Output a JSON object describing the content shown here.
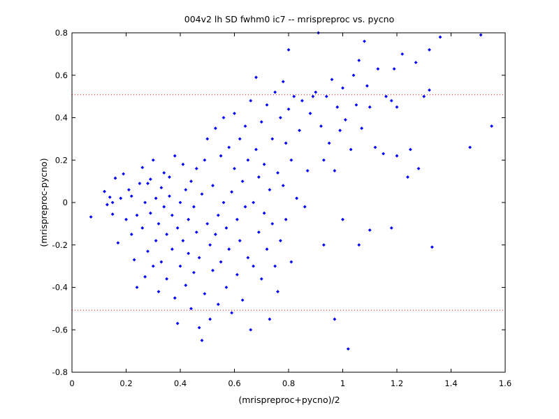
{
  "chart_data": {
    "type": "scatter",
    "title": "004v2 lh SD fwhm0 ic7 -- mrispreproc vs. pycno",
    "xlabel": "(mrispreproc+pycno)/2",
    "ylabel": "(mrispreproc-pycno)",
    "xlim": [
      0,
      1.6
    ],
    "ylim": [
      -0.8,
      0.8
    ],
    "xticks": [
      "0",
      "0.2",
      "0.4",
      "0.6",
      "0.8",
      "1",
      "1.2",
      "1.4",
      "1.6"
    ],
    "yticks": [
      "-0.8",
      "-0.6",
      "-0.4",
      "-0.2",
      "0",
      "0.2",
      "0.4",
      "0.6",
      "0.8"
    ],
    "grid": false,
    "marker_color": "#0000ff",
    "reference_color": "#ff0000",
    "reference_lines": [
      0.508,
      -0.508
    ],
    "series": [
      {
        "points": [
          [
            0.07,
            -0.068
          ],
          [
            0.12,
            0.052
          ],
          [
            0.13,
            -0.01
          ],
          [
            0.14,
            0.025
          ],
          [
            0.15,
            -0.055
          ],
          [
            0.15,
            0.0
          ],
          [
            0.16,
            0.115
          ],
          [
            0.17,
            -0.19
          ],
          [
            0.18,
            0.02
          ],
          [
            0.19,
            0.135
          ],
          [
            0.2,
            -0.08
          ],
          [
            0.21,
            0.06
          ],
          [
            0.22,
            -0.15
          ],
          [
            0.22,
            0.03
          ],
          [
            0.23,
            -0.27
          ],
          [
            0.24,
            -0.4
          ],
          [
            0.24,
            -0.06
          ],
          [
            0.25,
            0.09
          ],
          [
            0.26,
            0.165
          ],
          [
            0.26,
            -0.12
          ],
          [
            0.27,
            -0.35
          ],
          [
            0.27,
            0.0
          ],
          [
            0.28,
            -0.23
          ],
          [
            0.28,
            0.09
          ],
          [
            0.29,
            -0.05
          ],
          [
            0.29,
            0.11
          ],
          [
            0.3,
            -0.3
          ],
          [
            0.3,
            0.2
          ],
          [
            0.31,
            -0.18
          ],
          [
            0.31,
            0.02
          ],
          [
            0.32,
            -0.42
          ],
          [
            0.32,
            -0.1
          ],
          [
            0.33,
            0.07
          ],
          [
            0.33,
            -0.28
          ],
          [
            0.34,
            -0.02
          ],
          [
            0.34,
            0.14
          ],
          [
            0.35,
            -0.15
          ],
          [
            0.35,
            -0.36
          ],
          [
            0.36,
            0.03
          ],
          [
            0.36,
            0.12
          ],
          [
            0.37,
            -0.22
          ],
          [
            0.37,
            -0.06
          ],
          [
            0.38,
            -0.45
          ],
          [
            0.38,
            0.22
          ],
          [
            0.39,
            -0.57
          ],
          [
            0.39,
            -0.12
          ],
          [
            0.4,
            0.0
          ],
          [
            0.4,
            -0.3
          ],
          [
            0.41,
            0.18
          ],
          [
            0.41,
            -0.18
          ],
          [
            0.42,
            -0.39
          ],
          [
            0.42,
            0.06
          ],
          [
            0.43,
            -0.08
          ],
          [
            0.43,
            -0.24
          ],
          [
            0.44,
            0.1
          ],
          [
            0.44,
            -0.5
          ],
          [
            0.45,
            -0.02
          ],
          [
            0.45,
            -0.33
          ],
          [
            0.46,
            0.16
          ],
          [
            0.46,
            -0.14
          ],
          [
            0.47,
            -0.59
          ],
          [
            0.47,
            -0.26
          ],
          [
            0.48,
            0.04
          ],
          [
            0.48,
            -0.65
          ],
          [
            0.49,
            -0.43
          ],
          [
            0.49,
            0.2
          ],
          [
            0.5,
            -0.1
          ],
          [
            0.5,
            0.3
          ],
          [
            0.51,
            -0.2
          ],
          [
            0.51,
            -0.55
          ],
          [
            0.52,
            0.08
          ],
          [
            0.52,
            -0.32
          ],
          [
            0.53,
            0.35
          ],
          [
            0.53,
            -0.15
          ],
          [
            0.54,
            -0.06
          ],
          [
            0.54,
            -0.48
          ],
          [
            0.55,
            0.22
          ],
          [
            0.55,
            -0.28
          ],
          [
            0.56,
            0.0
          ],
          [
            0.56,
            0.4
          ],
          [
            0.57,
            -0.4
          ],
          [
            0.57,
            -0.12
          ],
          [
            0.58,
            0.26
          ],
          [
            0.58,
            -0.22
          ],
          [
            0.59,
            0.05
          ],
          [
            0.59,
            -0.52
          ],
          [
            0.6,
            0.16
          ],
          [
            0.6,
            0.42
          ],
          [
            0.61,
            -0.08
          ],
          [
            0.61,
            -0.34
          ],
          [
            0.62,
            0.3
          ],
          [
            0.62,
            -0.18
          ],
          [
            0.63,
            0.1
          ],
          [
            0.63,
            -0.46
          ],
          [
            0.64,
            0.36
          ],
          [
            0.64,
            -0.02
          ],
          [
            0.65,
            -0.26
          ],
          [
            0.65,
            0.2
          ],
          [
            0.66,
            -0.6
          ],
          [
            0.66,
            0.48
          ],
          [
            0.67,
            0.0
          ],
          [
            0.67,
            -0.3
          ],
          [
            0.68,
            0.25
          ],
          [
            0.68,
            0.59
          ],
          [
            0.69,
            -0.14
          ],
          [
            0.69,
            0.12
          ],
          [
            0.7,
            -0.36
          ],
          [
            0.7,
            0.38
          ],
          [
            0.71,
            -0.05
          ],
          [
            0.71,
            0.18
          ],
          [
            0.72,
            -0.22
          ],
          [
            0.72,
            0.46
          ],
          [
            0.73,
            0.06
          ],
          [
            0.73,
            -0.55
          ],
          [
            0.74,
            0.3
          ],
          [
            0.74,
            -0.1
          ],
          [
            0.75,
            0.52
          ],
          [
            0.75,
            -0.3
          ],
          [
            0.76,
            0.14
          ],
          [
            0.76,
            -0.42
          ],
          [
            0.77,
            0.4
          ],
          [
            0.77,
            -0.18
          ],
          [
            0.78,
            0.57
          ],
          [
            0.78,
            0.08
          ],
          [
            0.79,
            0.28
          ],
          [
            0.79,
            -0.08
          ],
          [
            0.8,
            0.72
          ],
          [
            0.8,
            0.44
          ],
          [
            0.81,
            -0.28
          ],
          [
            0.81,
            0.2
          ],
          [
            0.82,
            0.5
          ],
          [
            0.83,
            0.02
          ],
          [
            0.84,
            0.34
          ],
          [
            0.85,
            0.48
          ],
          [
            0.86,
            -0.02
          ],
          [
            0.87,
            0.15
          ],
          [
            0.88,
            0.42
          ],
          [
            0.89,
            0.5
          ],
          [
            0.9,
            0.52
          ],
          [
            0.91,
            0.8
          ],
          [
            0.92,
            0.36
          ],
          [
            0.93,
            -0.2
          ],
          [
            0.93,
            0.2
          ],
          [
            0.94,
            0.5
          ],
          [
            0.95,
            0.28
          ],
          [
            0.96,
            0.58
          ],
          [
            0.97,
            -0.55
          ],
          [
            0.97,
            0.15
          ],
          [
            0.98,
            0.45
          ],
          [
            0.99,
            0.34
          ],
          [
            1.0,
            0.54
          ],
          [
            1.0,
            -0.08
          ],
          [
            1.01,
            0.39
          ],
          [
            1.02,
            -0.69
          ],
          [
            1.03,
            0.25
          ],
          [
            1.04,
            0.6
          ],
          [
            1.05,
            0.46
          ],
          [
            1.06,
            -0.2
          ],
          [
            1.06,
            0.67
          ],
          [
            1.07,
            0.35
          ],
          [
            1.08,
            0.76
          ],
          [
            1.09,
            0.55
          ],
          [
            1.1,
            0.45
          ],
          [
            1.1,
            -0.13
          ],
          [
            1.12,
            0.26
          ],
          [
            1.13,
            0.63
          ],
          [
            1.15,
            0.23
          ],
          [
            1.16,
            0.5
          ],
          [
            1.18,
            0.48
          ],
          [
            1.18,
            -0.12
          ],
          [
            1.19,
            0.63
          ],
          [
            1.2,
            0.45
          ],
          [
            1.2,
            0.22
          ],
          [
            1.22,
            0.7
          ],
          [
            1.24,
            0.12
          ],
          [
            1.25,
            0.25
          ],
          [
            1.27,
            0.66
          ],
          [
            1.28,
            0.16
          ],
          [
            1.3,
            0.5
          ],
          [
            1.32,
            0.72
          ],
          [
            1.32,
            0.53
          ],
          [
            1.33,
            -0.21
          ],
          [
            1.36,
            0.78
          ],
          [
            1.47,
            0.26
          ],
          [
            1.51,
            0.79
          ],
          [
            1.55,
            0.36
          ]
        ]
      }
    ]
  }
}
